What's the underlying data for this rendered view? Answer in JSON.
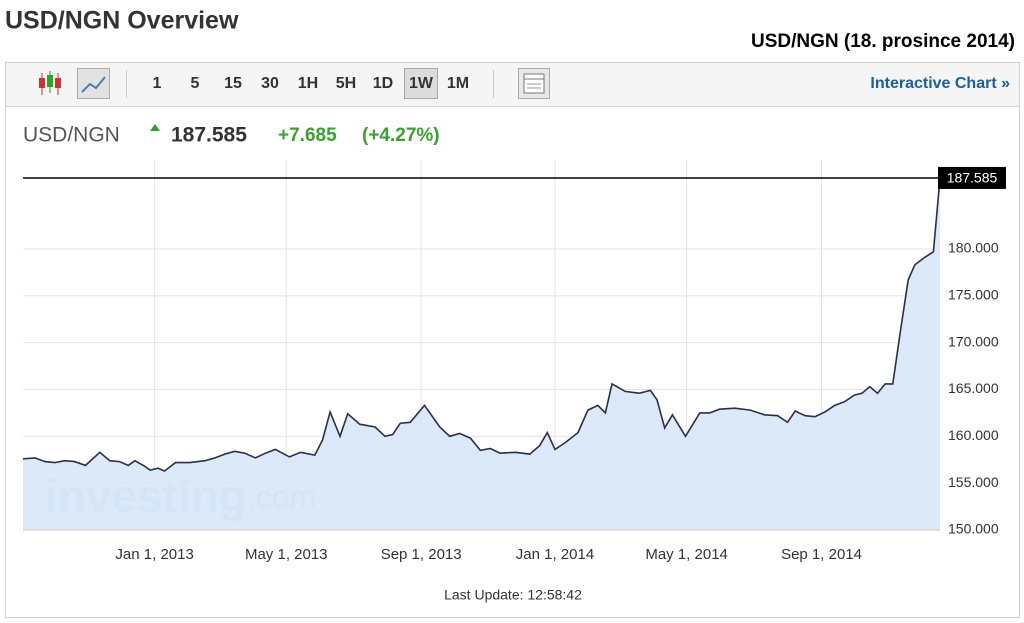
{
  "header": {
    "title": "USD/NGN Overview",
    "subtitle": "USD/NGN (18. prosince 2014)"
  },
  "toolbar": {
    "intervals": [
      "1",
      "5",
      "15",
      "30",
      "1H",
      "5H",
      "1D",
      "1W",
      "1M"
    ],
    "active": "1W",
    "link": "Interactive Chart »"
  },
  "quote": {
    "symbol": "USD/NGN",
    "price": "187.585",
    "change": "+7.685",
    "change_pct": "(+4.27%)"
  },
  "watermark": {
    "brand": "investing",
    "domain": ".com"
  },
  "footer": {
    "last_update": "Last Update: 12:58:42"
  },
  "chart_data": {
    "type": "area",
    "x": [
      "2012-09-03",
      "2012-09-14",
      "2012-09-23",
      "2012-10-02",
      "2012-10-11",
      "2012-10-20",
      "2012-10-30",
      "2012-11-12",
      "2012-11-21",
      "2012-11-30",
      "2012-12-08",
      "2012-12-14",
      "2012-12-23",
      "2012-12-28",
      "2013-01-04",
      "2013-01-10",
      "2013-01-20",
      "2013-02-02",
      "2013-02-16",
      "2013-02-25",
      "2013-03-06",
      "2013-03-15",
      "2013-03-24",
      "2013-04-03",
      "2013-04-12",
      "2013-04-21",
      "2013-05-04",
      "2013-05-14",
      "2013-05-27",
      "2013-06-03",
      "2013-06-10",
      "2013-06-19",
      "2013-06-26",
      "2013-07-07",
      "2013-07-21",
      "2013-07-30",
      "2013-08-06",
      "2013-08-13",
      "2013-08-22",
      "2013-09-04",
      "2013-09-18",
      "2013-09-27",
      "2013-10-06",
      "2013-10-16",
      "2013-10-25",
      "2013-11-03",
      "2013-11-12",
      "2013-11-26",
      "2013-12-09",
      "2013-12-18",
      "2013-12-25",
      "2014-01-01",
      "2014-01-10",
      "2014-01-22",
      "2014-01-31",
      "2014-02-09",
      "2014-02-16",
      "2014-02-22",
      "2014-03-06",
      "2014-03-19",
      "2014-03-29",
      "2014-04-04",
      "2014-04-11",
      "2014-04-18",
      "2014-04-30",
      "2014-05-13",
      "2014-05-22",
      "2014-05-31",
      "2014-06-14",
      "2014-06-28",
      "2014-07-11",
      "2014-07-23",
      "2014-08-01",
      "2014-08-08",
      "2014-08-17",
      "2014-08-26",
      "2014-09-04",
      "2014-09-13",
      "2014-09-22",
      "2014-10-01",
      "2014-10-08",
      "2014-10-15",
      "2014-10-22",
      "2014-10-29",
      "2014-11-05",
      "2014-11-12",
      "2014-11-19",
      "2014-11-25",
      "2014-12-04",
      "2014-12-12",
      "2014-12-18"
    ],
    "series": [
      {
        "color": "#2e2e4c",
        "fill": "#d7e7f8",
        "values": [
          157.6,
          157.7,
          157.3,
          157.2,
          157.4,
          157.3,
          156.9,
          158.3,
          157.4,
          157.3,
          156.9,
          157.4,
          156.8,
          156.4,
          156.6,
          156.3,
          157.2,
          157.2,
          157.4,
          157.7,
          158.1,
          158.4,
          158.2,
          157.7,
          158.2,
          158.6,
          157.8,
          158.3,
          158.0,
          159.6,
          162.6,
          160.0,
          162.4,
          161.3,
          161.0,
          160.0,
          160.2,
          161.4,
          161.5,
          163.3,
          161.0,
          160.0,
          160.3,
          159.8,
          158.5,
          158.7,
          158.2,
          158.3,
          158.1,
          159.0,
          160.4,
          158.6,
          159.3,
          160.4,
          162.8,
          163.3,
          162.5,
          165.6,
          164.8,
          164.6,
          164.9,
          163.9,
          160.9,
          162.3,
          160.0,
          162.5,
          162.5,
          162.9,
          163.0,
          162.8,
          162.3,
          162.2,
          161.5,
          162.7,
          162.2,
          162.1,
          162.6,
          163.3,
          163.7,
          164.4,
          164.6,
          165.3,
          164.6,
          165.6,
          165.6,
          171.3,
          176.7,
          178.3,
          179.1,
          179.7,
          187.585
        ]
      }
    ],
    "xlim": [
      "2012-09-03",
      "2014-12-18"
    ],
    "xticks": [
      {
        "value": "2013-01-01",
        "label": "Jan 1, 2013"
      },
      {
        "value": "2013-05-01",
        "label": "May 1, 2013"
      },
      {
        "value": "2013-09-01",
        "label": "Sep 1, 2013"
      },
      {
        "value": "2014-01-01",
        "label": "Jan 1, 2014"
      },
      {
        "value": "2014-05-01",
        "label": "May 1, 2014"
      },
      {
        "value": "2014-09-01",
        "label": "Sep 1, 2014"
      }
    ],
    "ylim": [
      150,
      189.5
    ],
    "yticks": [
      {
        "value": 150,
        "label": "150.000"
      },
      {
        "value": 155,
        "label": "155.000"
      },
      {
        "value": 160,
        "label": "160.000"
      },
      {
        "value": 165,
        "label": "165.000"
      },
      {
        "value": 170,
        "label": "170.000"
      },
      {
        "value": 175,
        "label": "175.000"
      },
      {
        "value": 180,
        "label": "180.000"
      }
    ],
    "grid": true
  }
}
